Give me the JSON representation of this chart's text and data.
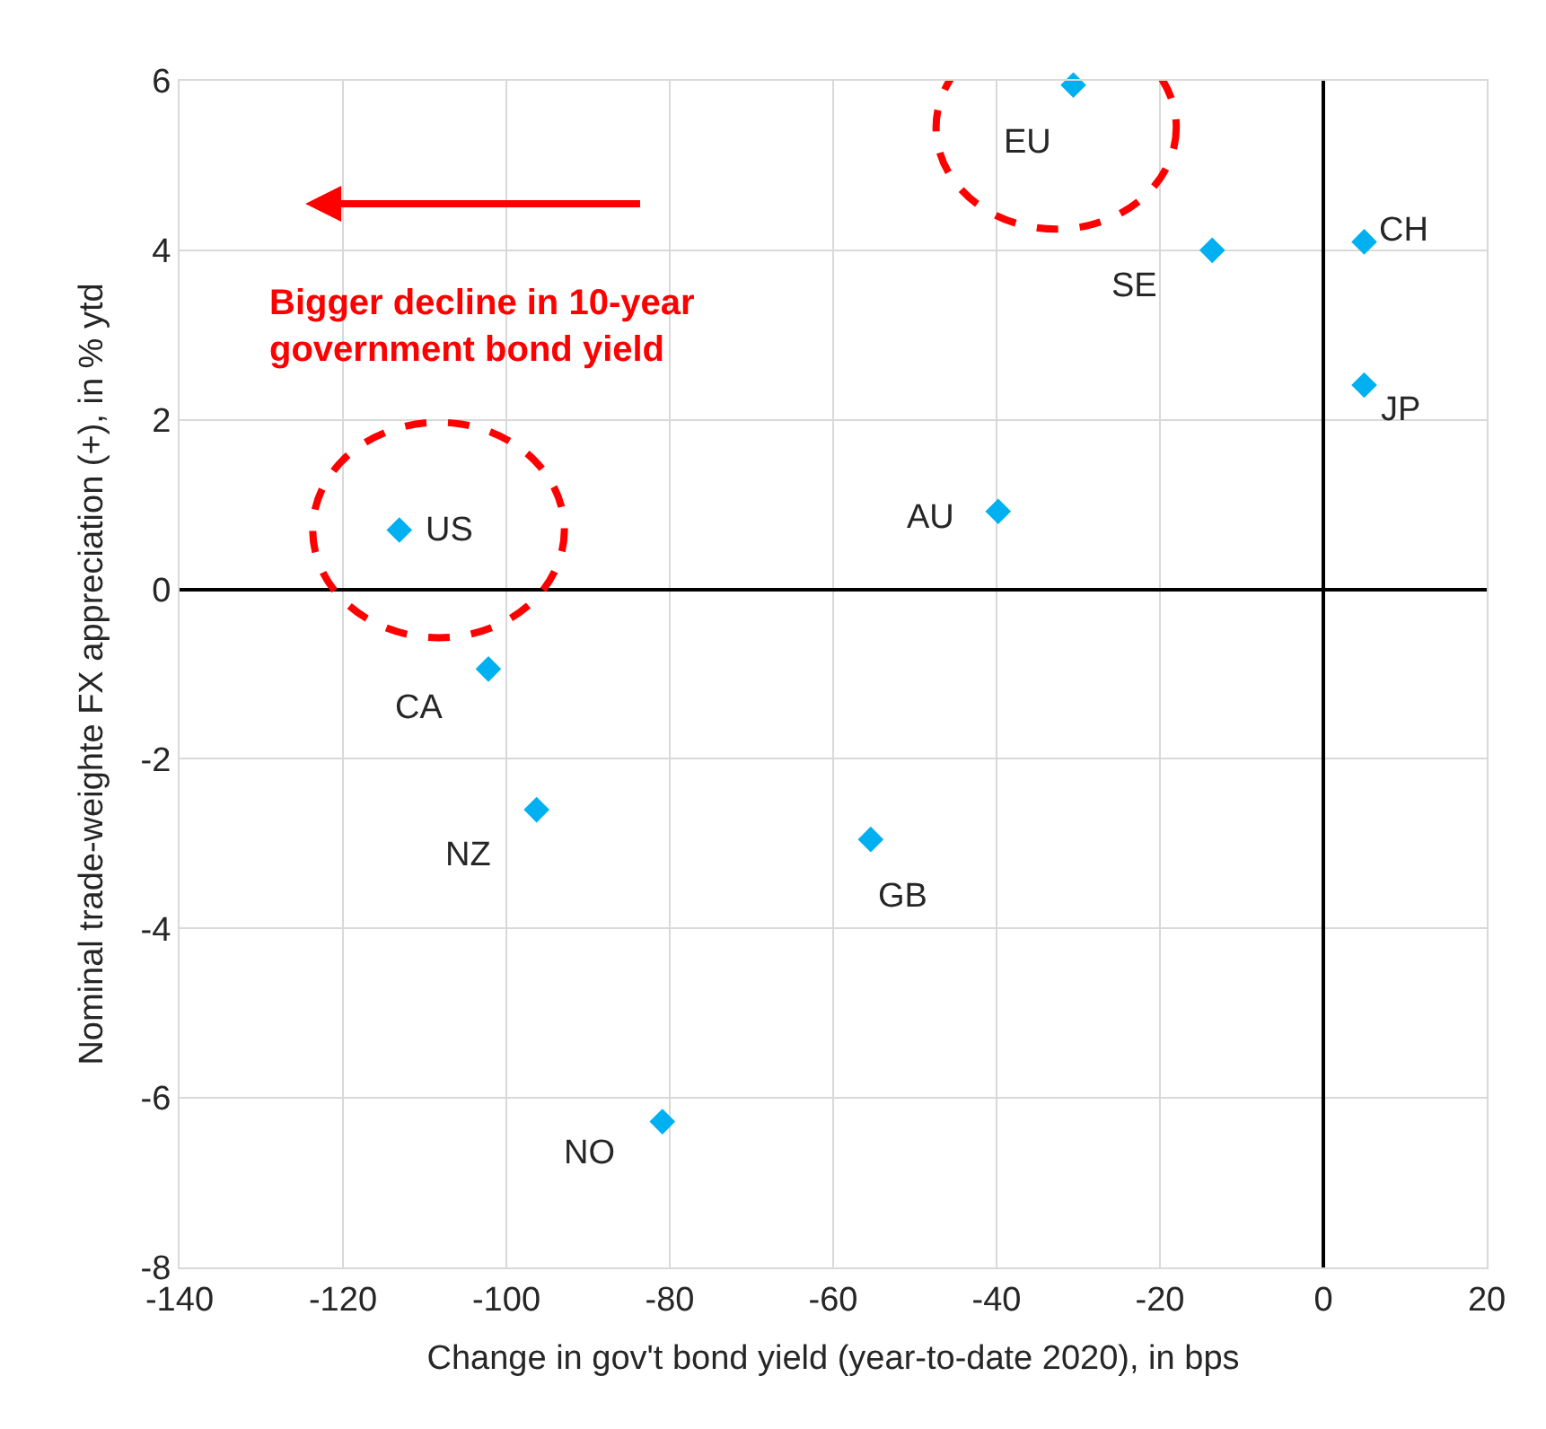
{
  "chart_data": {
    "type": "scatter",
    "xlabel": "Change in gov't bond yield (year-to-date 2020), in bps",
    "ylabel": "Nominal trade-weighte FX appreciation (+), in % ytd",
    "x": [
      -113.1,
      -102.2,
      -96.3,
      -80.9,
      -55.4,
      -39.8,
      -30.6,
      -13.6,
      5,
      5
    ],
    "series": [
      {
        "color": "#00b0f0",
        "values": [
          0.7,
          -0.94,
          -2.6,
          -6.28,
          -2.95,
          0.92,
          5.95,
          4.0,
          4.1,
          2.41
        ]
      }
    ],
    "annotations": [
      {
        "text": "US",
        "x": -113.1,
        "y": 0.7
      },
      {
        "text": "CA",
        "x": -102.2,
        "y": -0.94
      },
      {
        "text": "NZ",
        "x": -96.3,
        "y": -2.6
      },
      {
        "text": "NO",
        "x": -80.9,
        "y": -6.28
      },
      {
        "text": "GB",
        "x": -55.4,
        "y": -2.95
      },
      {
        "text": "AU",
        "x": -39.8,
        "y": 0.92
      },
      {
        "text": "EU",
        "x": -30.6,
        "y": 5.95
      },
      {
        "text": "SE",
        "x": -13.6,
        "y": 4.0
      },
      {
        "text": "CH",
        "x": 5,
        "y": 4.1
      },
      {
        "text": "JP",
        "x": 5,
        "y": 2.41
      },
      "Bigger decline in 10-year\ngovernment bond yield"
    ],
    "xlim": [
      -140,
      20
    ],
    "xticks": [
      -140,
      -120,
      -100,
      -80,
      -60,
      -40,
      -20,
      0,
      20
    ],
    "ylim": [
      -8,
      6
    ],
    "yticks": [
      -8,
      -6,
      -4,
      -2,
      0,
      2,
      4,
      6
    ],
    "grid": true,
    "marker": "diamond"
  }
}
